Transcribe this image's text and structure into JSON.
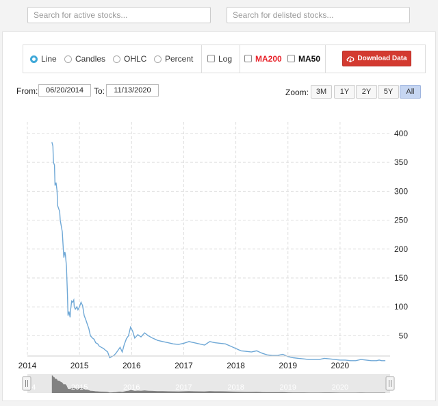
{
  "search": {
    "active_placeholder": "Search for active stocks...",
    "delisted_placeholder": "Search for delisted stocks..."
  },
  "toolbar": {
    "chart_types": [
      {
        "label": "Line",
        "checked": true
      },
      {
        "label": "Candles",
        "checked": false
      },
      {
        "label": "OHLC",
        "checked": false
      },
      {
        "label": "Percent",
        "checked": false
      }
    ],
    "log_label": "Log",
    "ma200_label": "MA200",
    "ma50_label": "MA50",
    "download_label": "Download Data",
    "colors": {
      "ma200": "#e8222a",
      "download_bg": "#d33a30",
      "radio_active": "#3fa8d8"
    }
  },
  "range": {
    "from_label": "From:",
    "from_value": "06/20/2014",
    "to_label": "To:",
    "to_value": "11/13/2020"
  },
  "zoom": {
    "label": "Zoom:",
    "buttons": [
      {
        "label": "3M",
        "active": false
      },
      {
        "label": "1Y",
        "active": false
      },
      {
        "label": "2Y",
        "active": false
      },
      {
        "label": "5Y",
        "active": false
      },
      {
        "label": "All",
        "active": true
      }
    ]
  },
  "chart_data": {
    "type": "line",
    "title": "",
    "xlabel": "",
    "ylabel": "",
    "line_color": "#6fa8d6",
    "ylim": [
      0,
      420
    ],
    "yticks": [
      50,
      100,
      150,
      200,
      250,
      300,
      350,
      400
    ],
    "x_tick_labels": [
      "2014",
      "2015",
      "2016",
      "2017",
      "2018",
      "2019",
      "2020"
    ],
    "grid": true,
    "series": [
      {
        "x": [
          2014.47,
          2014.49,
          2014.5,
          2014.52,
          2014.53,
          2014.55,
          2014.57,
          2014.58,
          2014.6,
          2014.62,
          2014.63,
          2014.65,
          2014.67,
          2014.69,
          2014.7,
          2014.72,
          2014.73,
          2014.75,
          2014.77,
          2014.78,
          2014.8,
          2014.82,
          2014.83,
          2014.85,
          2014.87,
          2014.89,
          2014.9,
          2014.92,
          2014.95,
          2014.97,
          2015.0,
          2015.03,
          2015.06,
          2015.09,
          2015.12,
          2015.15,
          2015.18,
          2015.21,
          2015.25,
          2015.28,
          2015.31,
          2015.35,
          2015.38,
          2015.42,
          2015.46,
          2015.5,
          2015.54,
          2015.58,
          2015.62,
          2015.66,
          2015.7,
          2015.74,
          2015.78,
          2015.82,
          2015.86,
          2015.9,
          2015.94,
          2015.98,
          2016.02,
          2016.06,
          2016.12,
          2016.18,
          2016.25,
          2016.32,
          2016.4,
          2016.5,
          2016.6,
          2016.7,
          2016.8,
          2016.9,
          2017.0,
          2017.1,
          2017.2,
          2017.3,
          2017.4,
          2017.5,
          2017.6,
          2017.7,
          2017.8,
          2017.9,
          2018.0,
          2018.1,
          2018.2,
          2018.3,
          2018.4,
          2018.5,
          2018.6,
          2018.7,
          2018.8,
          2018.9,
          2019.0,
          2019.1,
          2019.2,
          2019.3,
          2019.4,
          2019.5,
          2019.6,
          2019.7,
          2019.8,
          2019.9,
          2020.0,
          2020.1,
          2020.2,
          2020.3,
          2020.4,
          2020.5,
          2020.6,
          2020.7,
          2020.75,
          2020.8,
          2020.87
        ],
        "values": [
          385,
          378,
          350,
          345,
          310,
          315,
          300,
          275,
          270,
          265,
          250,
          240,
          230,
          200,
          185,
          195,
          190,
          170,
          120,
          85,
          92,
          82,
          95,
          110,
          108,
          112,
          100,
          96,
          100,
          95,
          100,
          108,
          102,
          85,
          78,
          70,
          62,
          50,
          46,
          44,
          38,
          36,
          32,
          30,
          28,
          25,
          22,
          12,
          14,
          16,
          20,
          25,
          30,
          22,
          35,
          45,
          50,
          65,
          58,
          46,
          52,
          48,
          55,
          50,
          46,
          42,
          40,
          38,
          36,
          35,
          37,
          40,
          38,
          36,
          34,
          40,
          38,
          37,
          36,
          32,
          28,
          24,
          23,
          22,
          24,
          20,
          17,
          16,
          16,
          18,
          14,
          12,
          11,
          10,
          9,
          9,
          9,
          11,
          10,
          9,
          8,
          8,
          7,
          7,
          9,
          8,
          7,
          7,
          8,
          7,
          7
        ]
      }
    ]
  }
}
